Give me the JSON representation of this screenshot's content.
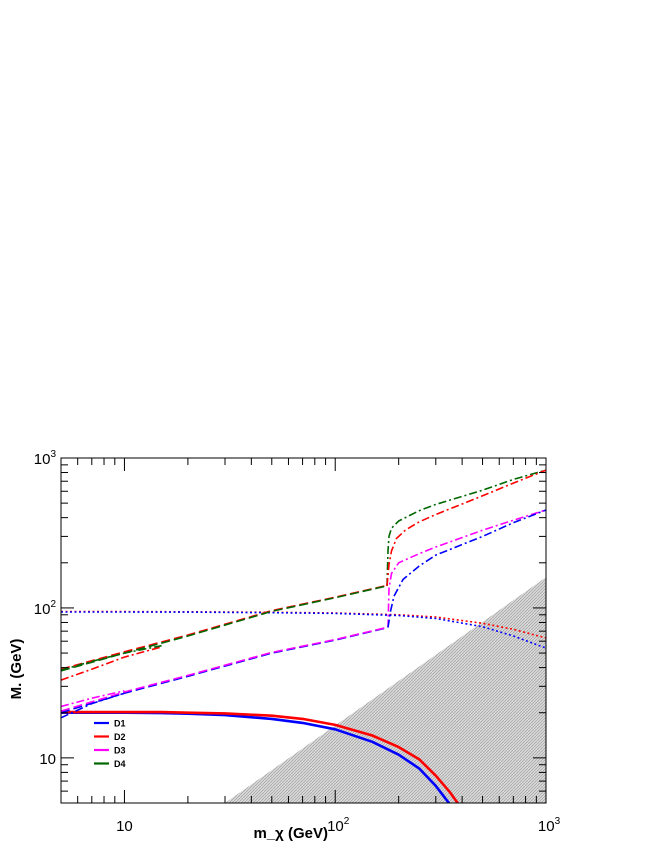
{
  "chart_data": {
    "type": "line",
    "title": "",
    "xlabel": "m_χ (GeV)",
    "ylabel": "M. (GeV)",
    "xscale": "log",
    "yscale": "log",
    "xlim": [
      5,
      1000
    ],
    "ylim": [
      5,
      1000
    ],
    "grid": false,
    "legend_position": "bottom-left",
    "x_major_ticks": [
      {
        "mantissa": "10",
        "exp": ""
      },
      {
        "mantissa": "10",
        "exp": "2"
      },
      {
        "mantissa": "10",
        "exp": "3"
      }
    ],
    "y_major_ticks": [
      {
        "mantissa": "10",
        "exp": ""
      },
      {
        "mantissa": "10",
        "exp": "2"
      },
      {
        "mantissa": "10",
        "exp": "3"
      }
    ],
    "excluded_region": {
      "description": "shaded triangle",
      "boundary": [
        [
          30,
          5
        ],
        [
          1000,
          160
        ],
        [
          1000,
          5
        ]
      ],
      "color": "#c8c8c8"
    },
    "legend": [
      {
        "label": "D1",
        "color": "#0000ff"
      },
      {
        "label": "D2",
        "color": "#ff0000"
      },
      {
        "label": "D3",
        "color": "#ff00ff"
      },
      {
        "label": "D4",
        "color": "#006600"
      }
    ],
    "series": [
      {
        "style": "solid",
        "color": "#0000ff",
        "width": 2.6,
        "points": [
          [
            5,
            20
          ],
          [
            7,
            20
          ],
          [
            10,
            20
          ],
          [
            15,
            19.9
          ],
          [
            20,
            19.7
          ],
          [
            30,
            19.3
          ],
          [
            50,
            18.2
          ],
          [
            70,
            17.1
          ],
          [
            100,
            15.5
          ],
          [
            150,
            12.8
          ],
          [
            200,
            10.5
          ],
          [
            250,
            8.5
          ],
          [
            300,
            6.5
          ],
          [
            350,
            4.9
          ]
        ]
      },
      {
        "style": "solid",
        "color": "#ff0000",
        "width": 2.6,
        "points": [
          [
            5,
            20.2
          ],
          [
            7,
            20.2
          ],
          [
            10,
            20.2
          ],
          [
            15,
            20.2
          ],
          [
            20,
            20
          ],
          [
            30,
            19.8
          ],
          [
            50,
            19.1
          ],
          [
            70,
            18.2
          ],
          [
            100,
            16.6
          ],
          [
            150,
            14.1
          ],
          [
            200,
            11.8
          ],
          [
            250,
            9.8
          ],
          [
            300,
            7.6
          ],
          [
            350,
            5.9
          ],
          [
            385,
            4.9
          ]
        ]
      },
      {
        "style": "dotted",
        "color": "#ff0000",
        "width": 1.6,
        "points": [
          [
            5,
            94.5
          ],
          [
            10,
            94.5
          ],
          [
            20,
            94.3
          ],
          [
            50,
            93.5
          ],
          [
            100,
            92.5
          ],
          [
            200,
            90
          ],
          [
            300,
            87
          ],
          [
            500,
            79
          ],
          [
            700,
            72
          ],
          [
            1000,
            63
          ]
        ]
      },
      {
        "style": "dotted",
        "color": "#0000ff",
        "width": 1.6,
        "points": [
          [
            5,
            94
          ],
          [
            10,
            94
          ],
          [
            20,
            93.8
          ],
          [
            50,
            93
          ],
          [
            100,
            92
          ],
          [
            200,
            89
          ],
          [
            300,
            85
          ],
          [
            500,
            75
          ],
          [
            700,
            65
          ],
          [
            1000,
            54
          ]
        ]
      },
      {
        "style": "dashed",
        "color": "#ff0000",
        "width": 1.6,
        "points": [
          [
            5,
            39
          ],
          [
            10,
            51
          ],
          [
            20,
            66
          ],
          [
            50,
            96
          ],
          [
            100,
            118
          ],
          [
            175,
            141
          ]
        ]
      },
      {
        "style": "dashed",
        "color": "#006600",
        "width": 1.6,
        "points": [
          [
            5,
            38
          ],
          [
            10,
            50
          ],
          [
            20,
            65
          ],
          [
            50,
            95
          ],
          [
            100,
            117
          ],
          [
            175,
            140
          ]
        ]
      },
      {
        "style": "dashed",
        "color": "#0000ff",
        "width": 1.6,
        "points": [
          [
            5,
            20
          ],
          [
            10,
            27
          ],
          [
            20,
            35
          ],
          [
            50,
            50
          ],
          [
            100,
            61
          ],
          [
            178,
            74
          ]
        ]
      },
      {
        "style": "dashed",
        "color": "#ff00ff",
        "width": 1.6,
        "points": [
          [
            5,
            20.5
          ],
          [
            10,
            27.5
          ],
          [
            20,
            35.5
          ],
          [
            50,
            50.5
          ],
          [
            100,
            61.5
          ],
          [
            178,
            74.5
          ]
        ]
      },
      {
        "style": "dashdot",
        "color": "#ff0000",
        "width": 1.6,
        "points": [
          [
            5,
            33
          ],
          [
            7,
            39
          ],
          [
            10,
            47
          ],
          [
            15,
            55
          ]
        ]
      },
      {
        "style": "dashdot",
        "color": "#006600",
        "width": 1.6,
        "points": [
          [
            5,
            38.5
          ],
          [
            7,
            44
          ],
          [
            10,
            50
          ],
          [
            15,
            56
          ]
        ]
      },
      {
        "style": "dashdot",
        "color": "#0000ff",
        "width": 1.6,
        "points": [
          [
            5,
            18.5
          ],
          [
            7,
            23
          ],
          [
            10,
            27
          ]
        ]
      },
      {
        "style": "dashdot",
        "color": "#ff00ff",
        "width": 1.6,
        "points": [
          [
            5,
            22
          ],
          [
            7,
            25
          ],
          [
            10,
            28
          ]
        ]
      },
      {
        "style": "dashdot",
        "color": "#006600",
        "width": 1.6,
        "points": [
          [
            176,
            140
          ],
          [
            178,
            240
          ],
          [
            180,
            300
          ],
          [
            185,
            340
          ],
          [
            200,
            380
          ],
          [
            250,
            445
          ],
          [
            300,
            490
          ],
          [
            500,
            610
          ],
          [
            700,
            720
          ],
          [
            1000,
            830
          ]
        ]
      },
      {
        "style": "dashdot",
        "color": "#ff0000",
        "width": 1.6,
        "points": [
          [
            176,
            140
          ],
          [
            180,
            195
          ],
          [
            185,
            240
          ],
          [
            195,
            290
          ],
          [
            215,
            330
          ],
          [
            250,
            375
          ],
          [
            300,
            420
          ],
          [
            500,
            560
          ],
          [
            700,
            680
          ],
          [
            1000,
            830
          ]
        ]
      },
      {
        "style": "dashdot",
        "color": "#ff00ff",
        "width": 1.6,
        "points": [
          [
            178,
            74
          ],
          [
            180,
            135
          ],
          [
            185,
            170
          ],
          [
            200,
            200
          ],
          [
            250,
            230
          ],
          [
            300,
            255
          ],
          [
            500,
            330
          ],
          [
            700,
            385
          ],
          [
            1000,
            450
          ]
        ]
      },
      {
        "style": "dashdot",
        "color": "#0000ff",
        "width": 1.6,
        "points": [
          [
            178,
            74
          ],
          [
            183,
            95
          ],
          [
            190,
            120
          ],
          [
            210,
            155
          ],
          [
            250,
            190
          ],
          [
            300,
            225
          ],
          [
            500,
            300
          ],
          [
            700,
            370
          ],
          [
            1000,
            450
          ]
        ]
      }
    ]
  }
}
